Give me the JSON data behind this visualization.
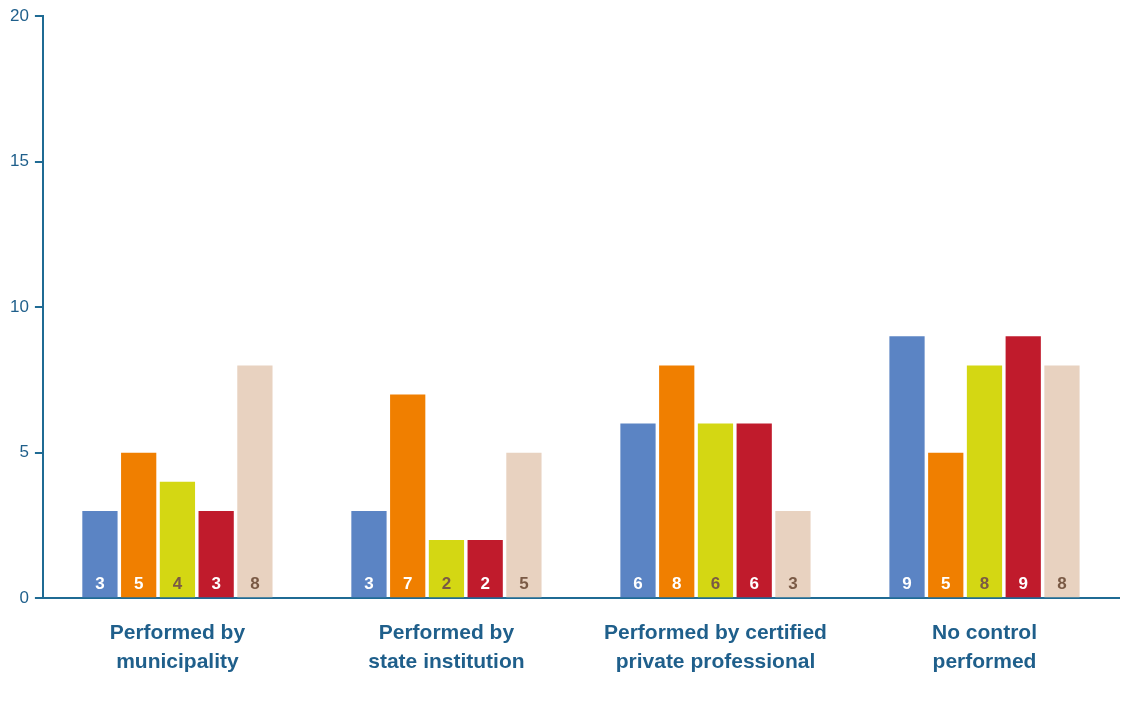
{
  "chart_data": {
    "type": "bar",
    "categories": [
      "Performed by municipality",
      "Performed by state institution",
      "Performed by certified private professional",
      "No control performed"
    ],
    "series": [
      {
        "color": "#5b84c4",
        "values": [
          3,
          3,
          6,
          9
        ]
      },
      {
        "color": "#f07f00",
        "values": [
          5,
          7,
          8,
          5
        ]
      },
      {
        "color": "#d4d713",
        "values": [
          4,
          2,
          6,
          8
        ]
      },
      {
        "color": "#c01b2c",
        "values": [
          3,
          2,
          6,
          9
        ]
      },
      {
        "color": "#e8d2c0",
        "values": [
          8,
          5,
          3,
          8
        ]
      }
    ],
    "ylim": [
      0,
      20
    ],
    "yticks": [
      0,
      5,
      10,
      15,
      20
    ],
    "grid": false,
    "legend": false,
    "data_labels": true
  }
}
